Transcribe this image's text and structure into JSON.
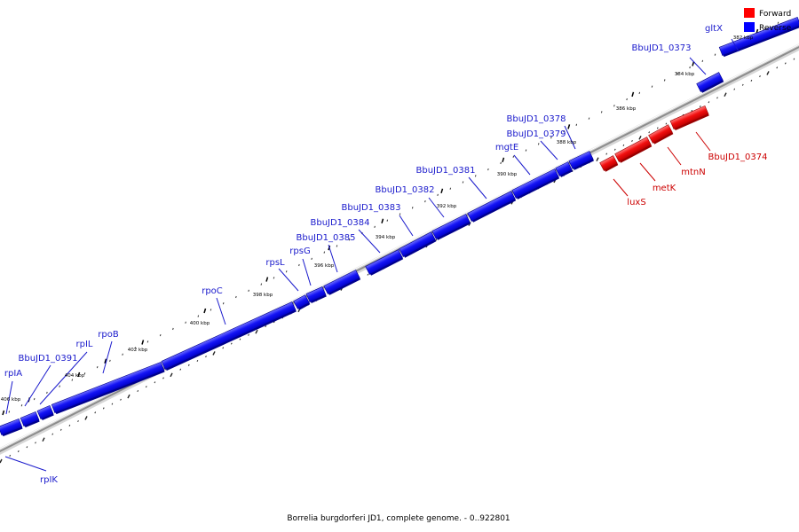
{
  "caption": "Borrelia burgdorferi JD1, complete genome. - 0..922801",
  "colors": {
    "forward": "#ff0000",
    "reverse": "#0000ff",
    "label_forward": "#cc0000",
    "label_reverse": "#1a1acc",
    "backbone": "#9a9a9a"
  },
  "legend": [
    {
      "label": "Forward",
      "color": "#ff0000"
    },
    {
      "label": "Reverse",
      "color": "#0000ff"
    }
  ],
  "kbp_labels": [
    "382 kbp",
    "384 kbp",
    "386 kbp",
    "388 kbp",
    "390 kbp",
    "392 kbp",
    "394 kbp",
    "396 kbp",
    "398 kbp",
    "400 kbp",
    "402 kbp",
    "404 kbp",
    "406 kbp"
  ],
  "genes": [
    {
      "name": "gltX",
      "strand": "reverse"
    },
    {
      "name": "BbuJD1_0373",
      "strand": "reverse"
    },
    {
      "name": "BbuJD1_0374",
      "strand": "forward"
    },
    {
      "name": "mtnN",
      "strand": "forward"
    },
    {
      "name": "metK",
      "strand": "forward"
    },
    {
      "name": "luxS",
      "strand": "forward"
    },
    {
      "name": "BbuJD1_0378",
      "strand": "reverse"
    },
    {
      "name": "BbuJD1_0379",
      "strand": "reverse"
    },
    {
      "name": "mgtE",
      "strand": "reverse"
    },
    {
      "name": "BbuJD1_0381",
      "strand": "reverse"
    },
    {
      "name": "BbuJD1_0382",
      "strand": "reverse"
    },
    {
      "name": "BbuJD1_0383",
      "strand": "reverse"
    },
    {
      "name": "BbuJD1_0384",
      "strand": "reverse"
    },
    {
      "name": "BbuJD1_0385",
      "strand": "reverse"
    },
    {
      "name": "rpsG",
      "strand": "reverse"
    },
    {
      "name": "rpsL",
      "strand": "reverse"
    },
    {
      "name": "rpoC",
      "strand": "reverse"
    },
    {
      "name": "rpoB",
      "strand": "reverse"
    },
    {
      "name": "rpIL",
      "strand": "reverse"
    },
    {
      "name": "BbuJD1_0391",
      "strand": "reverse"
    },
    {
      "name": "rpIA",
      "strand": "reverse"
    },
    {
      "name": "rpIK",
      "strand": "reverse"
    }
  ]
}
